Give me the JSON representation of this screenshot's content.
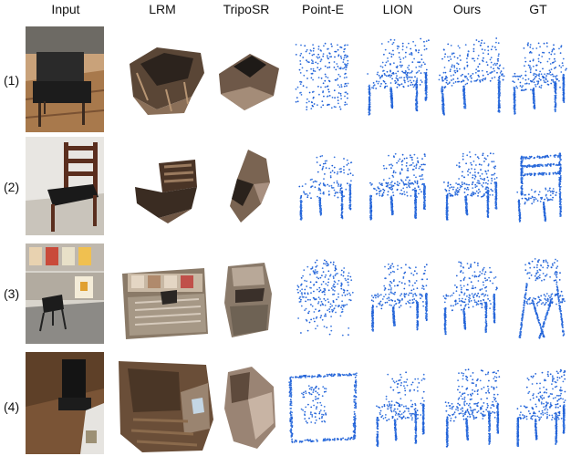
{
  "columns": {
    "input": "Input",
    "lrm": "LRM",
    "triposr": "TripoSR",
    "point_e": "Point-E",
    "lion": "LION",
    "ours": "Ours",
    "gt": "GT"
  },
  "rows": [
    "(1)",
    "(2)",
    "(3)",
    "(4)"
  ],
  "colors": {
    "points": "#3a78e0",
    "points_dark": "#1f5fd6",
    "mesh_dark": "#3b3028",
    "mesh_mid": "#6b5a4b",
    "mesh_light": "#9a8a7a",
    "floor_wood": "#8a5a34"
  }
}
